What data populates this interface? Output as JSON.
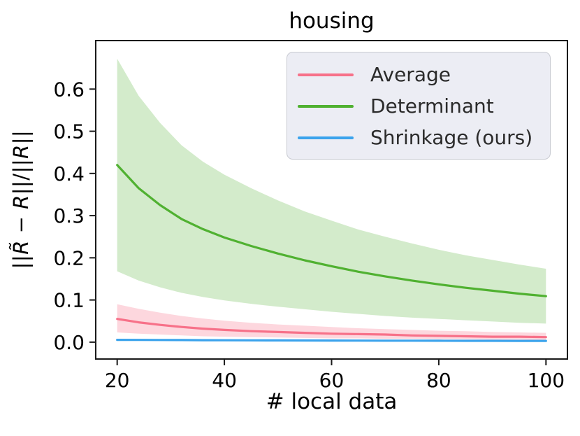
{
  "title": "housing",
  "axes": {
    "xlabel": "# local data",
    "ylabel_text": "||R̃ − R||/||R||",
    "ylabel_parts": [
      {
        "text": "||",
        "italic": false
      },
      {
        "text": "R̃",
        "italic": true
      },
      {
        "text": " − ",
        "italic": false
      },
      {
        "text": "R",
        "italic": true
      },
      {
        "text": "||/||",
        "italic": false
      },
      {
        "text": "R",
        "italic": true
      },
      {
        "text": "||",
        "italic": false
      }
    ]
  },
  "legend": {
    "position": "upper right",
    "items": [
      {
        "label": "Average",
        "color": "#f77189"
      },
      {
        "label": "Determinant",
        "color": "#50b131"
      },
      {
        "label": "Shrinkage (ours)",
        "color": "#3ba3ec"
      }
    ]
  },
  "colors": {
    "average": "#f77189",
    "determinant": "#50b131",
    "shrinkage": "#3ba3ec",
    "spine": "#1a1a1a",
    "tick_label": "#000000",
    "legend_background": "#eaecf3"
  },
  "chart_data": {
    "type": "line",
    "title": "housing",
    "xlabel": "# local data",
    "ylabel": "||R̃ − R||/||R||",
    "xlim": [
      16,
      104
    ],
    "ylim": [
      -0.04,
      0.715
    ],
    "grid": false,
    "legend_position": "upper right",
    "xticks": [
      20,
      40,
      60,
      80,
      100
    ],
    "xtick_labels": [
      "20",
      "40",
      "60",
      "80",
      "100"
    ],
    "yticks": [
      0.0,
      0.1,
      0.2,
      0.3,
      0.4,
      0.5,
      0.6
    ],
    "ytick_labels": [
      "0.0",
      "0.1",
      "0.2",
      "0.3",
      "0.4",
      "0.5",
      "0.6"
    ],
    "x": [
      20,
      24,
      28,
      32,
      36,
      40,
      45,
      50,
      55,
      60,
      65,
      70,
      75,
      80,
      85,
      90,
      95,
      100
    ],
    "series": [
      {
        "name": "Average",
        "color": "#f77189",
        "band_alpha": 0.28,
        "values": [
          0.055,
          0.047,
          0.041,
          0.036,
          0.032,
          0.029,
          0.026,
          0.024,
          0.022,
          0.02,
          0.019,
          0.018,
          0.016,
          0.015,
          0.014,
          0.013,
          0.013,
          0.012
        ],
        "upper": [
          0.09,
          0.079,
          0.07,
          0.062,
          0.056,
          0.051,
          0.046,
          0.042,
          0.039,
          0.036,
          0.033,
          0.031,
          0.029,
          0.027,
          0.026,
          0.024,
          0.023,
          0.022
        ],
        "lower": [
          0.023,
          0.02,
          0.018,
          0.016,
          0.014,
          0.013,
          0.012,
          0.011,
          0.01,
          0.009,
          0.009,
          0.008,
          0.008,
          0.007,
          0.007,
          0.006,
          0.006,
          0.005
        ]
      },
      {
        "name": "Determinant",
        "color": "#50b131",
        "band_alpha": 0.25,
        "values": [
          0.42,
          0.365,
          0.325,
          0.292,
          0.268,
          0.248,
          0.228,
          0.21,
          0.194,
          0.18,
          0.167,
          0.156,
          0.146,
          0.137,
          0.129,
          0.122,
          0.115,
          0.109
        ],
        "upper": [
          0.672,
          0.584,
          0.52,
          0.467,
          0.428,
          0.397,
          0.365,
          0.336,
          0.31,
          0.288,
          0.267,
          0.25,
          0.234,
          0.219,
          0.206,
          0.195,
          0.184,
          0.174
        ],
        "lower": [
          0.168,
          0.146,
          0.13,
          0.117,
          0.107,
          0.099,
          0.091,
          0.084,
          0.078,
          0.072,
          0.067,
          0.062,
          0.058,
          0.055,
          0.052,
          0.049,
          0.046,
          0.044
        ]
      },
      {
        "name": "Shrinkage (ours)",
        "color": "#3ba3ec",
        "band_alpha": 0.3,
        "values": [
          0.0055,
          0.0053,
          0.0051,
          0.0049,
          0.0047,
          0.0045,
          0.0043,
          0.0041,
          0.004,
          0.0038,
          0.0037,
          0.0035,
          0.0034,
          0.0033,
          0.0032,
          0.0031,
          0.003,
          0.0029
        ],
        "upper": [
          0.0075,
          0.0072,
          0.0069,
          0.0066,
          0.0063,
          0.0061,
          0.0058,
          0.0056,
          0.0054,
          0.0052,
          0.005,
          0.0048,
          0.0047,
          0.0045,
          0.0044,
          0.0043,
          0.0042,
          0.0041
        ],
        "lower": [
          0.0035,
          0.0034,
          0.0033,
          0.0032,
          0.0031,
          0.0029,
          0.0028,
          0.0026,
          0.0026,
          0.0024,
          0.0024,
          0.0022,
          0.0021,
          0.0021,
          0.002,
          0.0019,
          0.0018,
          0.0017
        ]
      }
    ]
  }
}
